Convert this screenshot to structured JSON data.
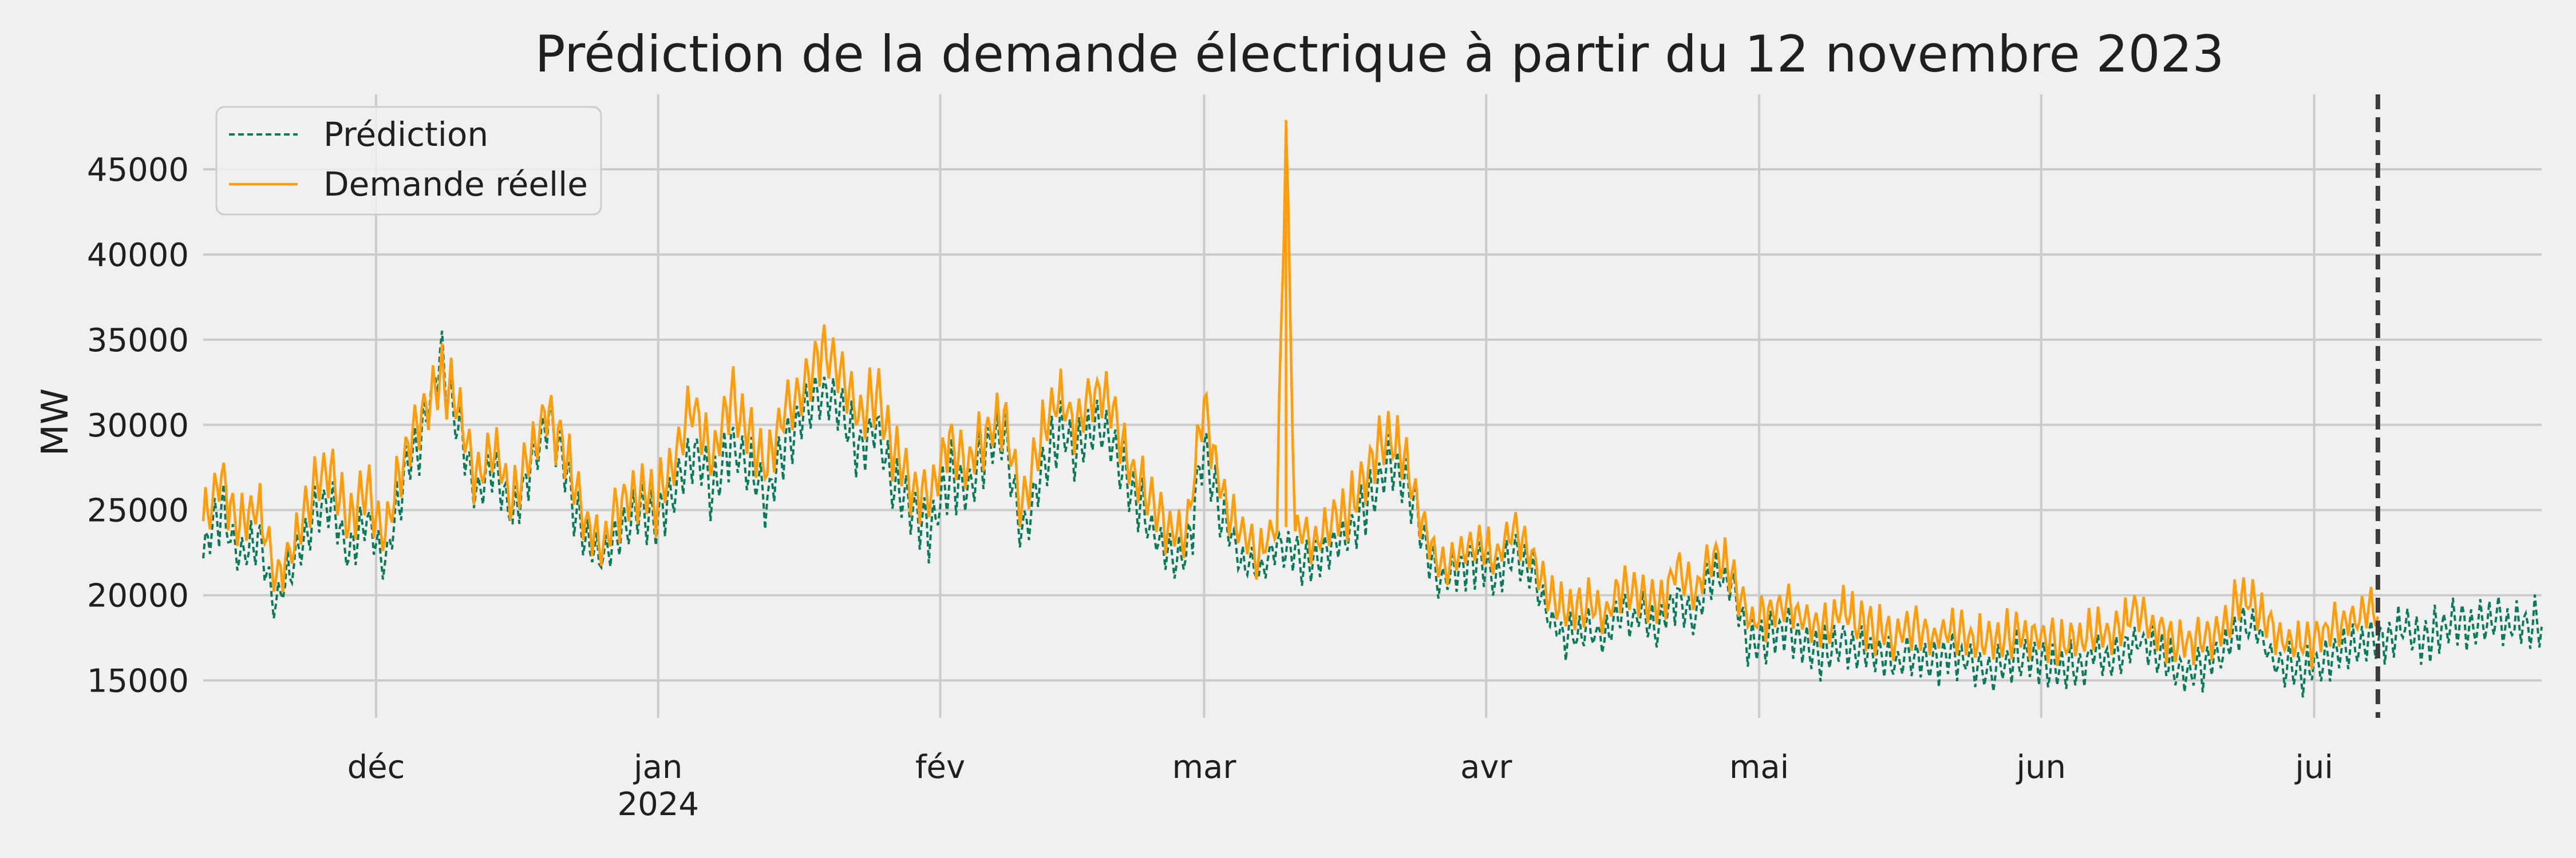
{
  "chart_data": {
    "type": "line",
    "title": "Prédiction de la demande électrique à partir du 12 novembre 2023",
    "xlabel": "",
    "ylabel": "MW",
    "x_start": "2023-11-12",
    "x_end": "2024-07-26",
    "split_date": "2024-07-08",
    "ylim": [
      12800,
      49400
    ],
    "grid": true,
    "legend_position": "top-left",
    "x_ticks": [
      {
        "date": "2023-12-01",
        "label": "déc",
        "sublabel": ""
      },
      {
        "date": "2024-01-01",
        "label": "jan",
        "sublabel": "2024"
      },
      {
        "date": "2024-02-01",
        "label": "fév",
        "sublabel": ""
      },
      {
        "date": "2024-03-01",
        "label": "mar",
        "sublabel": ""
      },
      {
        "date": "2024-04-01",
        "label": "avr",
        "sublabel": ""
      },
      {
        "date": "2024-05-01",
        "label": "mai",
        "sublabel": ""
      },
      {
        "date": "2024-06-01",
        "label": "jun",
        "sublabel": ""
      },
      {
        "date": "2024-07-01",
        "label": "jui",
        "sublabel": ""
      }
    ],
    "y_ticks": [
      15000,
      20000,
      25000,
      30000,
      35000,
      40000,
      45000
    ],
    "series": [
      {
        "name": "Prédiction",
        "color": "#0b7a5b",
        "style": "dashed",
        "data": [
          [
            "2023-11-12",
            22500
          ],
          [
            "2023-11-14",
            25000
          ],
          [
            "2023-11-16",
            22000
          ],
          [
            "2023-11-18",
            23500
          ],
          [
            "2023-11-20",
            19500
          ],
          [
            "2023-11-22",
            22000
          ],
          [
            "2023-11-24",
            24500
          ],
          [
            "2023-11-26",
            25500
          ],
          [
            "2023-11-28",
            22500
          ],
          [
            "2023-11-30",
            24500
          ],
          [
            "2023-12-02",
            22000
          ],
          [
            "2023-12-04",
            26500
          ],
          [
            "2023-12-06",
            29500
          ],
          [
            "2023-12-08",
            34000
          ],
          [
            "2023-12-10",
            30000
          ],
          [
            "2023-12-12",
            26000
          ],
          [
            "2023-12-14",
            27500
          ],
          [
            "2023-12-16",
            24500
          ],
          [
            "2023-12-18",
            27500
          ],
          [
            "2023-12-20",
            30500
          ],
          [
            "2023-12-22",
            27000
          ],
          [
            "2023-12-24",
            23000
          ],
          [
            "2023-12-26",
            22000
          ],
          [
            "2023-12-28",
            24000
          ],
          [
            "2023-12-30",
            25000
          ],
          [
            "2024-01-01",
            24500
          ],
          [
            "2024-01-03",
            26500
          ],
          [
            "2024-01-05",
            28500
          ],
          [
            "2024-01-07",
            26000
          ],
          [
            "2024-01-09",
            29000
          ],
          [
            "2024-01-11",
            27500
          ],
          [
            "2024-01-13",
            25500
          ],
          [
            "2024-01-15",
            29000
          ],
          [
            "2024-01-17",
            30500
          ],
          [
            "2024-01-19",
            32000
          ],
          [
            "2024-01-21",
            31000
          ],
          [
            "2024-01-23",
            28500
          ],
          [
            "2024-01-25",
            30000
          ],
          [
            "2024-01-27",
            26000
          ],
          [
            "2024-01-29",
            25000
          ],
          [
            "2024-01-31",
            24000
          ],
          [
            "2024-02-02",
            27000
          ],
          [
            "2024-02-04",
            26000
          ],
          [
            "2024-02-06",
            28500
          ],
          [
            "2024-02-08",
            29500
          ],
          [
            "2024-02-10",
            23500
          ],
          [
            "2024-02-12",
            27000
          ],
          [
            "2024-02-14",
            29500
          ],
          [
            "2024-02-16",
            28500
          ],
          [
            "2024-02-18",
            30000
          ],
          [
            "2024-02-20",
            29000
          ],
          [
            "2024-02-22",
            26000
          ],
          [
            "2024-02-24",
            24000
          ],
          [
            "2024-02-26",
            22500
          ],
          [
            "2024-02-28",
            22000
          ],
          [
            "2024-03-01",
            29000
          ],
          [
            "2024-03-03",
            24500
          ],
          [
            "2024-03-05",
            22000
          ],
          [
            "2024-03-07",
            21500
          ],
          [
            "2024-03-09",
            23000
          ],
          [
            "2024-03-11",
            22500
          ],
          [
            "2024-03-13",
            22000
          ],
          [
            "2024-03-15",
            23000
          ],
          [
            "2024-03-17",
            23500
          ],
          [
            "2024-03-19",
            25500
          ],
          [
            "2024-03-21",
            27500
          ],
          [
            "2024-03-23",
            27000
          ],
          [
            "2024-03-25",
            23500
          ],
          [
            "2024-03-27",
            20500
          ],
          [
            "2024-03-29",
            21500
          ],
          [
            "2024-03-31",
            22000
          ],
          [
            "2024-04-02",
            21000
          ],
          [
            "2024-04-04",
            22500
          ],
          [
            "2024-04-06",
            21500
          ],
          [
            "2024-04-08",
            18500
          ],
          [
            "2024-04-10",
            17500
          ],
          [
            "2024-04-12",
            18000
          ],
          [
            "2024-04-14",
            17500
          ],
          [
            "2024-04-16",
            19000
          ],
          [
            "2024-04-18",
            18500
          ],
          [
            "2024-04-20",
            18000
          ],
          [
            "2024-04-22",
            20000
          ],
          [
            "2024-04-24",
            18500
          ],
          [
            "2024-04-26",
            21500
          ],
          [
            "2024-04-28",
            20500
          ],
          [
            "2024-04-30",
            17000
          ],
          [
            "2024-05-02",
            17500
          ],
          [
            "2024-05-04",
            18000
          ],
          [
            "2024-05-06",
            17000
          ],
          [
            "2024-05-08",
            16500
          ],
          [
            "2024-05-10",
            17500
          ],
          [
            "2024-05-12",
            17000
          ],
          [
            "2024-05-14",
            16500
          ],
          [
            "2024-05-16",
            16000
          ],
          [
            "2024-05-18",
            16500
          ],
          [
            "2024-05-20",
            16000
          ],
          [
            "2024-05-22",
            16500
          ],
          [
            "2024-05-24",
            16000
          ],
          [
            "2024-05-26",
            15500
          ],
          [
            "2024-05-28",
            16000
          ],
          [
            "2024-05-30",
            16500
          ],
          [
            "2024-06-01",
            16000
          ],
          [
            "2024-06-03",
            15500
          ],
          [
            "2024-06-05",
            16000
          ],
          [
            "2024-06-07",
            16500
          ],
          [
            "2024-06-09",
            16000
          ],
          [
            "2024-06-11",
            17500
          ],
          [
            "2024-06-13",
            17000
          ],
          [
            "2024-06-15",
            16000
          ],
          [
            "2024-06-17",
            15500
          ],
          [
            "2024-06-19",
            16000
          ],
          [
            "2024-06-21",
            16500
          ],
          [
            "2024-06-23",
            18500
          ],
          [
            "2024-06-25",
            17500
          ],
          [
            "2024-06-27",
            16000
          ],
          [
            "2024-06-29",
            15500
          ],
          [
            "2024-07-01",
            16000
          ],
          [
            "2024-07-03",
            16500
          ],
          [
            "2024-07-05",
            17000
          ],
          [
            "2024-07-07",
            17500
          ],
          [
            "2024-07-09",
            17500
          ],
          [
            "2024-07-11",
            18000
          ],
          [
            "2024-07-13",
            17500
          ],
          [
            "2024-07-15",
            18000
          ],
          [
            "2024-07-17",
            18500
          ],
          [
            "2024-07-19",
            18000
          ],
          [
            "2024-07-21",
            18500
          ],
          [
            "2024-07-23",
            18000
          ],
          [
            "2024-07-25",
            18500
          ],
          [
            "2024-07-26",
            18000
          ]
        ]
      },
      {
        "name": "Demande réelle",
        "color": "#ff9d0a",
        "style": "solid",
        "data": [
          [
            "2023-11-12",
            24500
          ],
          [
            "2023-11-14",
            27000
          ],
          [
            "2023-11-16",
            24000
          ],
          [
            "2023-11-18",
            25000
          ],
          [
            "2023-11-20",
            21000
          ],
          [
            "2023-11-22",
            23000
          ],
          [
            "2023-11-24",
            26000
          ],
          [
            "2023-11-26",
            27500
          ],
          [
            "2023-11-28",
            24000
          ],
          [
            "2023-11-30",
            26500
          ],
          [
            "2023-12-02",
            23500
          ],
          [
            "2023-12-04",
            28000
          ],
          [
            "2023-12-06",
            30500
          ],
          [
            "2023-12-08",
            33000
          ],
          [
            "2023-12-10",
            31000
          ],
          [
            "2023-12-12",
            27000
          ],
          [
            "2023-12-14",
            28500
          ],
          [
            "2023-12-16",
            25500
          ],
          [
            "2023-12-18",
            28500
          ],
          [
            "2023-12-20",
            31000
          ],
          [
            "2023-12-22",
            28000
          ],
          [
            "2023-12-24",
            24000
          ],
          [
            "2023-12-26",
            23000
          ],
          [
            "2023-12-28",
            25500
          ],
          [
            "2023-12-30",
            26000
          ],
          [
            "2024-01-01",
            25500
          ],
          [
            "2024-01-03",
            28500
          ],
          [
            "2024-01-05",
            31000
          ],
          [
            "2024-01-07",
            28000
          ],
          [
            "2024-01-09",
            31500
          ],
          [
            "2024-01-11",
            29500
          ],
          [
            "2024-01-13",
            27500
          ],
          [
            "2024-01-15",
            31000
          ],
          [
            "2024-01-17",
            32500
          ],
          [
            "2024-01-19",
            34500
          ],
          [
            "2024-01-21",
            33000
          ],
          [
            "2024-01-23",
            30500
          ],
          [
            "2024-01-25",
            32000
          ],
          [
            "2024-01-27",
            28000
          ],
          [
            "2024-01-29",
            26500
          ],
          [
            "2024-01-31",
            25500
          ],
          [
            "2024-02-02",
            29500
          ],
          [
            "2024-02-04",
            27500
          ],
          [
            "2024-02-06",
            29500
          ],
          [
            "2024-02-08",
            30500
          ],
          [
            "2024-02-10",
            25000
          ],
          [
            "2024-02-12",
            29000
          ],
          [
            "2024-02-14",
            31500
          ],
          [
            "2024-02-16",
            30000
          ],
          [
            "2024-02-18",
            32000
          ],
          [
            "2024-02-20",
            31000
          ],
          [
            "2024-02-22",
            27500
          ],
          [
            "2024-02-24",
            25500
          ],
          [
            "2024-02-26",
            24000
          ],
          [
            "2024-02-28",
            23500
          ],
          [
            "2024-03-01",
            31500
          ],
          [
            "2024-03-03",
            26000
          ],
          [
            "2024-03-05",
            23500
          ],
          [
            "2024-03-07",
            22500
          ],
          [
            "2024-03-09",
            24000
          ],
          [
            "2024-03-10",
            47900
          ],
          [
            "2024-03-11",
            24000
          ],
          [
            "2024-03-13",
            23000
          ],
          [
            "2024-03-15",
            24500
          ],
          [
            "2024-03-17",
            25000
          ],
          [
            "2024-03-19",
            27500
          ],
          [
            "2024-03-21",
            29500
          ],
          [
            "2024-03-23",
            28000
          ],
          [
            "2024-03-25",
            24500
          ],
          [
            "2024-03-27",
            21500
          ],
          [
            "2024-03-29",
            22500
          ],
          [
            "2024-03-31",
            23000
          ],
          [
            "2024-04-02",
            22000
          ],
          [
            "2024-04-04",
            24000
          ],
          [
            "2024-04-06",
            22500
          ],
          [
            "2024-04-08",
            20000
          ],
          [
            "2024-04-10",
            19000
          ],
          [
            "2024-04-12",
            19500
          ],
          [
            "2024-04-14",
            19000
          ],
          [
            "2024-04-16",
            20500
          ],
          [
            "2024-04-18",
            20000
          ],
          [
            "2024-04-20",
            19500
          ],
          [
            "2024-04-22",
            21500
          ],
          [
            "2024-04-24",
            20000
          ],
          [
            "2024-04-26",
            22500
          ],
          [
            "2024-04-28",
            21500
          ],
          [
            "2024-04-30",
            18500
          ],
          [
            "2024-05-02",
            19000
          ],
          [
            "2024-05-04",
            19500
          ],
          [
            "2024-05-06",
            18500
          ],
          [
            "2024-05-08",
            18000
          ],
          [
            "2024-05-10",
            19000
          ],
          [
            "2024-05-12",
            18500
          ],
          [
            "2024-05-14",
            18000
          ],
          [
            "2024-05-16",
            17500
          ],
          [
            "2024-05-18",
            18000
          ],
          [
            "2024-05-20",
            17500
          ],
          [
            "2024-05-22",
            18000
          ],
          [
            "2024-05-24",
            17500
          ],
          [
            "2024-05-26",
            17000
          ],
          [
            "2024-05-28",
            17500
          ],
          [
            "2024-05-30",
            18000
          ],
          [
            "2024-06-01",
            17500
          ],
          [
            "2024-06-03",
            17000
          ],
          [
            "2024-06-05",
            17500
          ],
          [
            "2024-06-07",
            18000
          ],
          [
            "2024-06-09",
            17500
          ],
          [
            "2024-06-11",
            19000
          ],
          [
            "2024-06-13",
            18500
          ],
          [
            "2024-06-15",
            17500
          ],
          [
            "2024-06-17",
            17000
          ],
          [
            "2024-06-19",
            17500
          ],
          [
            "2024-06-21",
            18000
          ],
          [
            "2024-06-23",
            20000
          ],
          [
            "2024-06-25",
            19000
          ],
          [
            "2024-06-27",
            17500
          ],
          [
            "2024-06-29",
            17000
          ],
          [
            "2024-07-01",
            17500
          ],
          [
            "2024-07-03",
            18000
          ],
          [
            "2024-07-05",
            18500
          ],
          [
            "2024-07-07",
            19000
          ],
          [
            "2024-07-08",
            18500
          ]
        ]
      }
    ]
  }
}
